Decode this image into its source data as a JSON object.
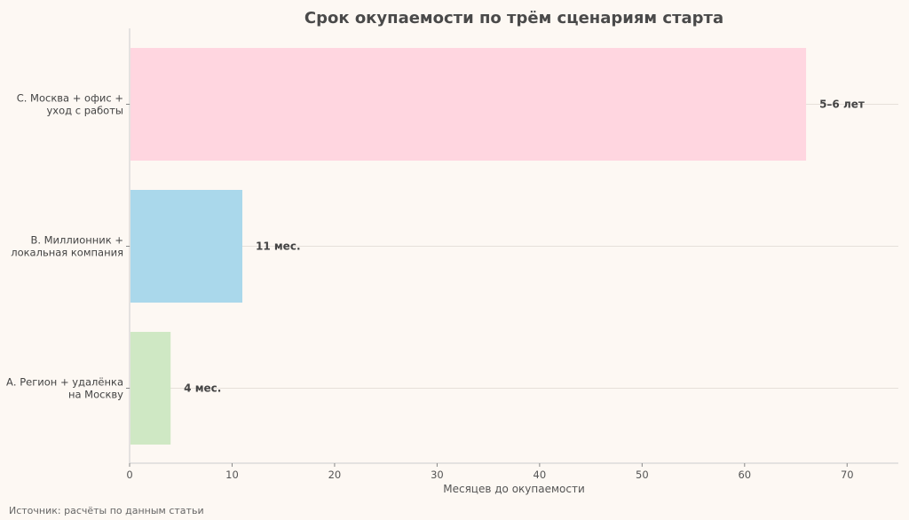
{
  "chart_data": {
    "type": "bar",
    "orientation": "horizontal",
    "title": "Срок окупаемости по трём сценариям старта",
    "xlabel": "Месяцев до окупаемости",
    "ylabel": "",
    "xlim": [
      0,
      75
    ],
    "x_ticks": [
      0,
      10,
      20,
      30,
      40,
      50,
      60,
      70
    ],
    "grid": "horizontal",
    "categories": [
      [
        "С. Москва + офис +",
        "уход с работы"
      ],
      [
        "В. Миллионник +",
        "локальная компания"
      ],
      [
        "А. Регион + удалёнка",
        "на Москву"
      ]
    ],
    "values": [
      66,
      11,
      4
    ],
    "data_labels": [
      "5–6 лет",
      "11 мес.",
      "4 мес."
    ],
    "colors": [
      "#ffd6e0",
      "#aad8eb",
      "#cfe8c4"
    ]
  },
  "source": "Источник: расчёты по данным статьи"
}
